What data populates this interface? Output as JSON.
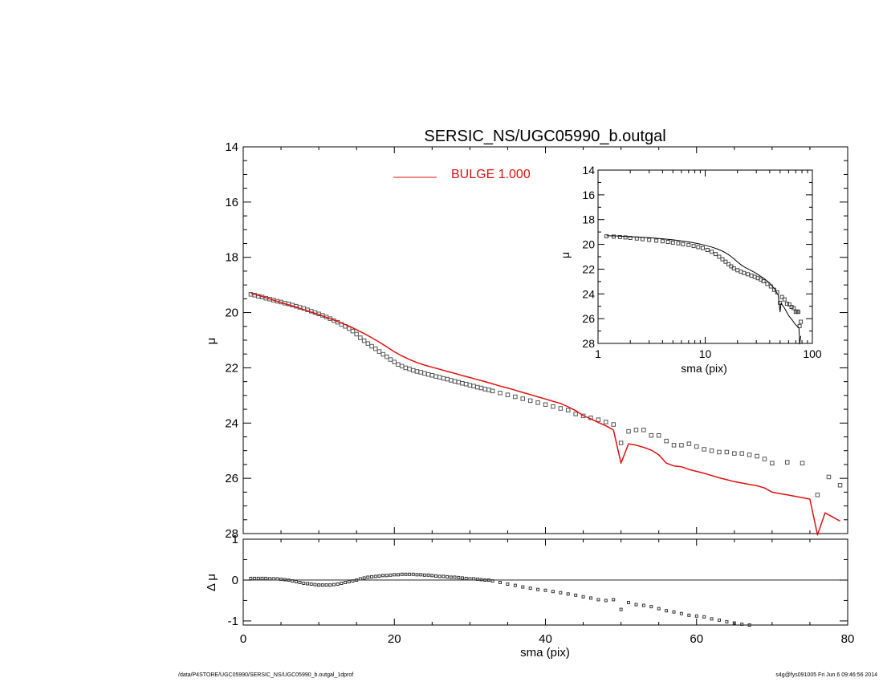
{
  "footer": {
    "path": "/data/P4STORE/UGC05990/SERSIC_NS/UGC05990_b.outgal_1dprof",
    "stamp": "s4g@fys091005  Fri Jun  6 09:46:56 2014"
  },
  "colors": {
    "model": "#e01010",
    "data": "#555555",
    "residual": "#333333"
  },
  "chart_data": [
    {
      "id": "main-profile",
      "type": "scatter",
      "title": "SERSIC_NS/UGC05990_b.outgal",
      "xlabel": "",
      "ylabel": "μ",
      "xlim": [
        0,
        80
      ],
      "ylim": [
        28,
        14
      ],
      "y_inverted": true,
      "yticks": [
        14,
        16,
        18,
        20,
        22,
        24,
        26,
        28
      ],
      "legend": {
        "placement": "top-center",
        "entries": [
          {
            "label": "BULGE  1.000",
            "color": "#e01010"
          }
        ]
      },
      "series": [
        {
          "name": "BULGE  1.000",
          "style": "line",
          "x": [
            1,
            2,
            3,
            4,
            5,
            6,
            7,
            8,
            9,
            10,
            11,
            12,
            13,
            14,
            15,
            16,
            17,
            18,
            19,
            20,
            21,
            22,
            23,
            24,
            25,
            26,
            27,
            28,
            29,
            30,
            31,
            32,
            33,
            34,
            35,
            36,
            37,
            38,
            39,
            40,
            41,
            42,
            43,
            44,
            45,
            46,
            47,
            48,
            49,
            50,
            51,
            52,
            53,
            54,
            55,
            56,
            57,
            58,
            59,
            60,
            61,
            62,
            63,
            64,
            65,
            66,
            67,
            68,
            69,
            70,
            71,
            72,
            73,
            74,
            75,
            76,
            77,
            78,
            79
          ],
          "y": [
            19.3,
            19.38,
            19.46,
            19.55,
            19.63,
            19.72,
            19.8,
            19.89,
            19.98,
            20.07,
            20.17,
            20.27,
            20.38,
            20.49,
            20.62,
            20.76,
            20.91,
            21.07,
            21.24,
            21.42,
            21.57,
            21.7,
            21.81,
            21.9,
            21.98,
            22.05,
            22.13,
            22.2,
            22.28,
            22.35,
            22.43,
            22.5,
            22.58,
            22.66,
            22.73,
            22.81,
            22.89,
            22.97,
            23.05,
            23.13,
            23.21,
            23.29,
            23.41,
            23.55,
            23.73,
            23.85,
            23.98,
            24.1,
            24.25,
            25.45,
            24.75,
            24.8,
            24.88,
            24.98,
            25.15,
            25.45,
            25.55,
            25.58,
            25.68,
            25.75,
            25.82,
            25.9,
            25.98,
            26.05,
            26.12,
            26.17,
            26.22,
            26.27,
            26.35,
            26.5,
            26.55,
            26.6,
            26.65,
            26.7,
            26.75,
            28.05,
            27.25,
            27.4,
            27.55
          ]
        },
        {
          "name": "",
          "style": "markers",
          "x": [
            1.0,
            1.5,
            2.0,
            2.5,
            3.0,
            3.5,
            4.0,
            4.5,
            5.0,
            5.5,
            6.0,
            6.5,
            7.0,
            7.5,
            8.0,
            8.5,
            9.0,
            9.5,
            10.0,
            10.5,
            11.0,
            11.5,
            12.0,
            12.5,
            13.0,
            13.5,
            14.0,
            14.5,
            15.0,
            15.5,
            16.0,
            16.5,
            17.0,
            17.5,
            18.0,
            18.5,
            19.0,
            19.5,
            20.0,
            20.5,
            21.0,
            21.5,
            22.0,
            22.5,
            23.0,
            23.5,
            24.0,
            24.5,
            25.0,
            25.5,
            26.0,
            26.5,
            27.0,
            27.5,
            28.0,
            28.5,
            29.0,
            29.5,
            30.0,
            30.5,
            31.0,
            31.5,
            32.0,
            32.5,
            33.0,
            34.0,
            35.0,
            36.0,
            37.0,
            38.0,
            39.0,
            40.0,
            41.0,
            42.0,
            43.0,
            44.0,
            45.0,
            46.0,
            47.0,
            48.0,
            49.0,
            50.0,
            51.0,
            52.0,
            53.0,
            54.0,
            55.0,
            56.0,
            57.0,
            58.0,
            59.0,
            60.0,
            61.0,
            62.0,
            63.0,
            64.0,
            65.0,
            66.0,
            67.0,
            68.0,
            69.0,
            70.0,
            72.0,
            74.0,
            76.0,
            77.5,
            79.0
          ],
          "y": [
            19.34,
            19.37,
            19.41,
            19.44,
            19.48,
            19.51,
            19.55,
            19.59,
            19.62,
            19.66,
            19.69,
            19.73,
            19.77,
            19.81,
            19.85,
            19.9,
            19.95,
            20.0,
            20.05,
            20.1,
            20.16,
            20.22,
            20.29,
            20.35,
            20.43,
            20.5,
            20.58,
            20.67,
            20.78,
            20.91,
            21.02,
            21.12,
            21.22,
            21.31,
            21.41,
            21.51,
            21.6,
            21.7,
            21.79,
            21.88,
            21.94,
            22.0,
            22.04,
            22.09,
            22.13,
            22.16,
            22.2,
            22.24,
            22.27,
            22.31,
            22.34,
            22.38,
            22.41,
            22.45,
            22.49,
            22.52,
            22.56,
            22.59,
            22.63,
            22.66,
            22.7,
            22.73,
            22.77,
            22.8,
            22.84,
            22.91,
            22.98,
            23.05,
            23.12,
            23.19,
            23.26,
            23.33,
            23.4,
            23.47,
            23.53,
            23.67,
            23.74,
            23.81,
            23.88,
            23.96,
            24.05,
            24.72,
            24.3,
            24.25,
            24.25,
            24.45,
            24.45,
            24.65,
            24.8,
            24.8,
            24.75,
            24.85,
            24.95,
            25.0,
            25.05,
            25.05,
            25.1,
            25.1,
            25.15,
            25.2,
            25.3,
            25.45,
            25.42,
            25.45,
            26.6,
            25.95,
            26.25
          ]
        }
      ]
    },
    {
      "id": "residual-profile",
      "type": "scatter",
      "title": "",
      "xlabel": "sma (pix)",
      "ylabel": "Δ μ",
      "xlim": [
        0,
        80
      ],
      "ylim": [
        -1.1,
        1.0
      ],
      "xticks": [
        0,
        20,
        40,
        60,
        80
      ],
      "yticks": [
        1,
        0,
        -1
      ],
      "zero_line": true,
      "series": [
        {
          "name": "",
          "style": "markers",
          "x": [
            1.0,
            1.5,
            2.0,
            2.5,
            3.0,
            3.5,
            4.0,
            4.5,
            5.0,
            5.5,
            6.0,
            6.5,
            7.0,
            7.5,
            8.0,
            8.5,
            9.0,
            9.5,
            10.0,
            10.5,
            11.0,
            11.5,
            12.0,
            12.5,
            13.0,
            13.5,
            14.0,
            14.5,
            15.0,
            15.5,
            16.0,
            16.5,
            17.0,
            17.5,
            18.0,
            18.5,
            19.0,
            19.5,
            20.0,
            20.5,
            21.0,
            21.5,
            22.0,
            22.5,
            23.0,
            23.5,
            24.0,
            24.5,
            25.0,
            25.5,
            26.0,
            26.5,
            27.0,
            27.5,
            28.0,
            28.5,
            29.0,
            29.5,
            30.0,
            30.5,
            31.0,
            31.5,
            32.0,
            32.5,
            33.0,
            34.0,
            35.0,
            36.0,
            37.0,
            38.0,
            39.0,
            40.0,
            41.0,
            42.0,
            43.0,
            44.0,
            45.0,
            46.0,
            47.0,
            48.0,
            49.0,
            50.0,
            51.0,
            52.0,
            53.0,
            54.0,
            55.0,
            56.0,
            57.0,
            58.0,
            59.0,
            60.0,
            61.0,
            62.0,
            63.0,
            64.0,
            65.0,
            66.0,
            67.0
          ],
          "y": [
            0.04,
            0.04,
            0.04,
            0.04,
            0.04,
            0.03,
            0.03,
            0.03,
            0.02,
            0.01,
            0.0,
            -0.02,
            -0.04,
            -0.06,
            -0.08,
            -0.09,
            -0.1,
            -0.11,
            -0.12,
            -0.12,
            -0.12,
            -0.12,
            -0.11,
            -0.1,
            -0.08,
            -0.06,
            -0.04,
            -0.02,
            0.0,
            0.03,
            0.05,
            0.07,
            0.08,
            0.09,
            0.1,
            0.11,
            0.11,
            0.12,
            0.13,
            0.13,
            0.14,
            0.14,
            0.14,
            0.14,
            0.13,
            0.13,
            0.12,
            0.12,
            0.11,
            0.1,
            0.09,
            0.09,
            0.08,
            0.07,
            0.07,
            0.06,
            0.05,
            0.04,
            0.03,
            0.03,
            0.02,
            0.01,
            0.0,
            0.0,
            -0.02,
            -0.06,
            -0.1,
            -0.13,
            -0.17,
            -0.2,
            -0.23,
            -0.25,
            -0.28,
            -0.31,
            -0.34,
            -0.37,
            -0.41,
            -0.44,
            -0.48,
            -0.5,
            -0.48,
            -0.72,
            -0.55,
            -0.6,
            -0.62,
            -0.65,
            -0.7,
            -0.75,
            -0.78,
            -0.82,
            -0.86,
            -0.88,
            -0.9,
            -0.95,
            -0.98,
            -1.02,
            -1.05,
            -1.08,
            -1.1
          ]
        }
      ]
    },
    {
      "id": "inset-profile",
      "type": "scatter",
      "title": "",
      "xlabel": "sma (pix)",
      "ylabel": "μ",
      "xscale": "log",
      "xlim": [
        1,
        100
      ],
      "ylim": [
        28,
        14
      ],
      "y_inverted": true,
      "xticks": [
        1,
        10,
        100
      ],
      "yticks": [
        14,
        16,
        18,
        20,
        22,
        24,
        26,
        28
      ],
      "series": [
        {
          "name": "",
          "style": "line",
          "x": [
            1.2,
            1.5,
            2,
            3,
            4,
            5,
            6,
            7,
            8,
            9,
            10,
            11,
            12,
            13,
            14,
            15,
            16,
            17,
            18,
            19,
            20,
            22,
            24,
            26,
            28,
            30,
            33,
            36,
            40,
            44,
            48,
            50,
            51,
            55,
            60,
            65,
            70,
            75,
            76,
            78
          ],
          "y": [
            19.3,
            19.32,
            19.38,
            19.46,
            19.55,
            19.63,
            19.72,
            19.8,
            19.89,
            19.98,
            20.07,
            20.17,
            20.27,
            20.38,
            20.49,
            20.62,
            20.76,
            20.91,
            21.07,
            21.24,
            21.42,
            21.7,
            21.9,
            22.05,
            22.2,
            22.35,
            22.58,
            22.81,
            23.13,
            23.55,
            24.1,
            25.45,
            24.75,
            25.15,
            25.75,
            26.12,
            26.5,
            26.75,
            28.05,
            27.4
          ]
        },
        {
          "name": "",
          "style": "markers",
          "x": [
            1.2,
            1.4,
            1.6,
            1.8,
            2.0,
            2.3,
            2.6,
            3.0,
            3.5,
            4.0,
            4.5,
            5.0,
            5.6,
            6.2,
            7.0,
            7.8,
            8.6,
            9.5,
            10.5,
            11.5,
            12.5,
            13.5,
            14.5,
            15.5,
            16.5,
            17.5,
            18.5,
            20,
            21.5,
            23,
            25,
            27,
            29,
            31,
            33,
            35,
            38,
            41,
            44,
            47,
            50,
            52,
            55,
            58,
            61,
            64,
            67,
            70,
            72,
            74,
            76,
            78
          ],
          "y": [
            19.34,
            19.37,
            19.41,
            19.44,
            19.48,
            19.53,
            19.58,
            19.64,
            19.7,
            19.75,
            19.8,
            19.86,
            19.92,
            19.98,
            20.05,
            20.13,
            20.22,
            20.3,
            20.45,
            20.6,
            20.78,
            21.0,
            21.2,
            21.4,
            21.6,
            21.78,
            21.94,
            22.09,
            22.2,
            22.31,
            22.41,
            22.52,
            22.63,
            22.73,
            22.84,
            22.98,
            23.19,
            23.4,
            23.67,
            23.88,
            24.72,
            24.25,
            24.45,
            24.8,
            24.85,
            25.05,
            25.15,
            25.45,
            25.42,
            25.45,
            26.6,
            26.25
          ]
        }
      ]
    }
  ]
}
